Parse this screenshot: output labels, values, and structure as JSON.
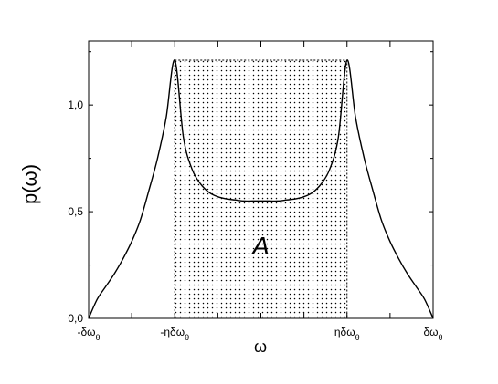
{
  "chart_data": {
    "type": "line",
    "title": "",
    "xlabel": "ω",
    "ylabel": "p(ω)",
    "xlim": [
      -1.0,
      1.0
    ],
    "ylim": [
      0.0,
      1.3
    ],
    "grid": false,
    "x_tick_labels": [
      {
        "value": -1.0,
        "main": "-δω",
        "sub": "θ"
      },
      {
        "value": -0.5,
        "main": "-ηδω",
        "sub": "θ"
      },
      {
        "value": 0.5,
        "main": "ηδω",
        "sub": "θ"
      },
      {
        "value": 1.0,
        "main": "δω",
        "sub": "θ"
      }
    ],
    "y_ticks": [
      {
        "value": 0.0,
        "label": "0,0"
      },
      {
        "value": 0.5,
        "label": "0,5"
      },
      {
        "value": 1.0,
        "label": "1,0"
      }
    ],
    "series": [
      {
        "x": [
          -1.0,
          -0.95,
          -0.9,
          -0.85,
          -0.8,
          -0.75,
          -0.7,
          -0.65,
          -0.6,
          -0.55,
          -0.5,
          -0.45,
          -0.4,
          -0.35,
          -0.3,
          -0.25,
          -0.2,
          -0.15,
          -0.1,
          -0.05,
          0.0,
          0.05,
          0.1,
          0.15,
          0.2,
          0.25,
          0.3,
          0.35,
          0.4,
          0.45,
          0.5,
          0.55,
          0.6,
          0.65,
          0.7,
          0.75,
          0.8,
          0.85,
          0.9,
          0.95,
          1.0
        ],
        "y": [
          0.0,
          0.09,
          0.15,
          0.21,
          0.28,
          0.36,
          0.46,
          0.6,
          0.75,
          0.94,
          1.21,
          0.85,
          0.7,
          0.63,
          0.59,
          0.57,
          0.56,
          0.555,
          0.55,
          0.55,
          0.55,
          0.55,
          0.55,
          0.555,
          0.56,
          0.57,
          0.59,
          0.63,
          0.7,
          0.85,
          1.21,
          0.94,
          0.75,
          0.6,
          0.46,
          0.36,
          0.28,
          0.21,
          0.15,
          0.09,
          0.0
        ]
      }
    ],
    "shaded_region": {
      "x_start": -0.5,
      "x_end": 0.5,
      "height": 1.21,
      "label": "A",
      "label_x": 0.0,
      "label_y": 0.3
    }
  }
}
